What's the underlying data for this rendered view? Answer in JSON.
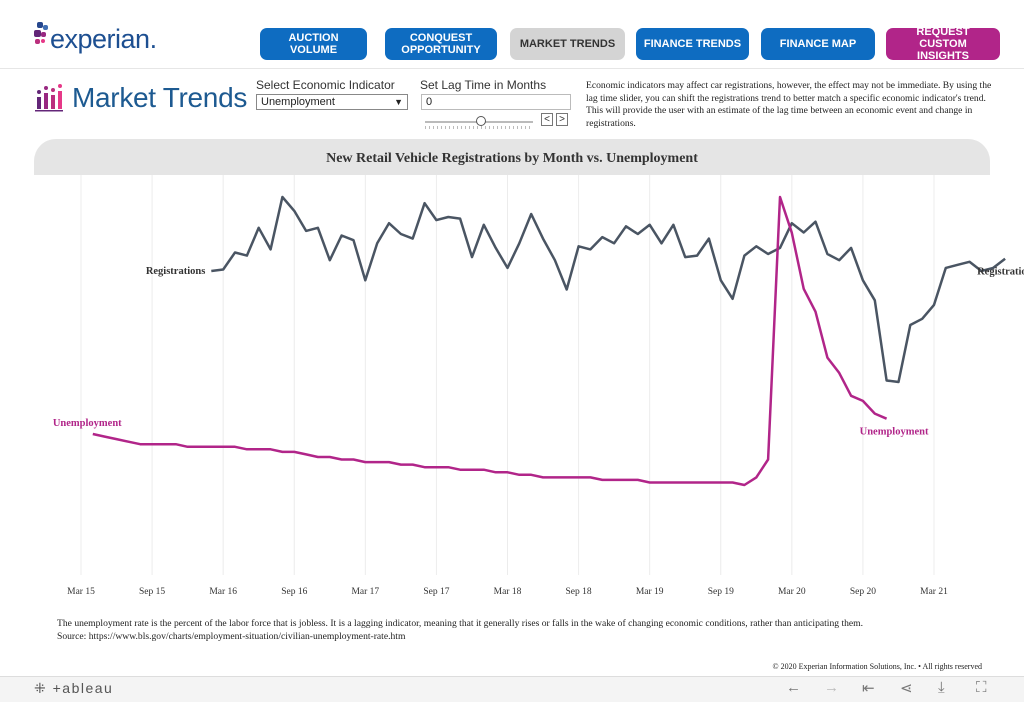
{
  "header": {
    "logo_text": "experian.",
    "nav": [
      {
        "label": "AUCTION VOLUME",
        "style": "blue"
      },
      {
        "label": "CONQUEST OPPORTUNITY",
        "style": "blue"
      },
      {
        "label": "MARKET TRENDS",
        "style": "gray"
      },
      {
        "label": "FINANCE TRENDS",
        "style": "blue"
      },
      {
        "label": "FINANCE MAP",
        "style": "blue"
      },
      {
        "label": "REQUEST CUSTOM INSIGHTS",
        "style": "purple"
      }
    ]
  },
  "page": {
    "title": "Market Trends",
    "icon": "bar-chart-people-icon"
  },
  "controls": {
    "indicator_label": "Select Economic Indicator",
    "indicator_value": "Unemployment",
    "lag_label": "Set Lag Time in Months",
    "lag_value": "0",
    "prev_label": "<",
    "next_label": ">"
  },
  "description": "Economic indicators may affect car registrations, however, the effect may not be immediate.  By using the lag time slider, you can shift the registrations trend to better match a specific economic indicator's trend. This will provide the user with an estimate of the lag time between an economic event and change in registrations.",
  "colors": {
    "registrations": "#4a5563",
    "unemployment": "#b12589",
    "nav_blue": "#0e6cc1",
    "nav_purple": "#b12589",
    "title_blue": "#1d5a91"
  },
  "chart_data": {
    "type": "line",
    "title": "New Retail Vehicle Registrations by Month vs. Unemployment",
    "x_ticks": [
      "Mar 15",
      "Sep 15",
      "Mar 16",
      "Sep 16",
      "Mar 17",
      "Sep 17",
      "Mar 18",
      "Sep 18",
      "Mar 19",
      "Sep 19",
      "Mar 20",
      "Sep 20",
      "Mar 21"
    ],
    "grid": "vertical",
    "series": [
      {
        "name": "Registrations",
        "start": "Feb 16",
        "values": [
          73,
          74,
          85,
          83,
          101,
          87,
          121,
          112,
          99,
          101,
          80,
          96,
          93,
          67,
          91,
          104,
          97,
          94,
          117,
          106,
          108,
          107,
          82,
          103,
          88,
          75,
          91,
          110,
          94,
          80,
          61,
          89,
          87,
          95,
          91,
          102,
          97,
          103,
          91,
          103,
          82,
          83,
          94,
          67,
          55,
          83,
          89,
          84,
          88,
          104,
          98,
          105,
          84,
          80,
          88,
          67,
          54,
          2,
          1,
          38,
          42,
          51,
          75,
          77,
          79,
          73,
          75,
          81
        ]
      },
      {
        "name": "Unemployment",
        "start": "Apr 15",
        "values": [
          5.4,
          5.3,
          5.2,
          5.1,
          5.0,
          5.0,
          5.0,
          5.0,
          4.9,
          4.9,
          4.9,
          4.9,
          4.9,
          4.8,
          4.8,
          4.8,
          4.7,
          4.7,
          4.6,
          4.5,
          4.5,
          4.4,
          4.4,
          4.3,
          4.3,
          4.3,
          4.2,
          4.2,
          4.1,
          4.1,
          4.1,
          4.0,
          4.0,
          4.0,
          3.9,
          3.9,
          3.8,
          3.8,
          3.7,
          3.7,
          3.7,
          3.7,
          3.7,
          3.6,
          3.6,
          3.6,
          3.6,
          3.5,
          3.5,
          3.5,
          3.5,
          3.5,
          3.5,
          3.5,
          3.5,
          3.4,
          3.7,
          4.4,
          14.7,
          13.3,
          11.1,
          10.2,
          8.4,
          7.8,
          6.9,
          6.7,
          6.2,
          6.0
        ]
      }
    ],
    "series_labels": {
      "registrations_left": "Registrations",
      "registrations_right": "Registrations",
      "unemployment_left": "Unemployment",
      "unemployment_right": "Unemployment"
    }
  },
  "footnote": {
    "line1": "The unemployment rate is the percent of the labor force that is jobless. It is a lagging indicator, meaning that it generally rises or falls in the wake of changing economic conditions, rather than anticipating them.",
    "line2": "Source: https://www.bls.gov/charts/employment-situation/civilian-unemployment-rate.htm"
  },
  "copyright": "© 2020 Experian Information Solutions, Inc. • All rights reserved",
  "toolbar": {
    "brand": "+ableau",
    "icons": [
      "undo-icon",
      "redo-icon",
      "revert-icon",
      "share-icon",
      "download-icon",
      "fullscreen-icon"
    ]
  }
}
